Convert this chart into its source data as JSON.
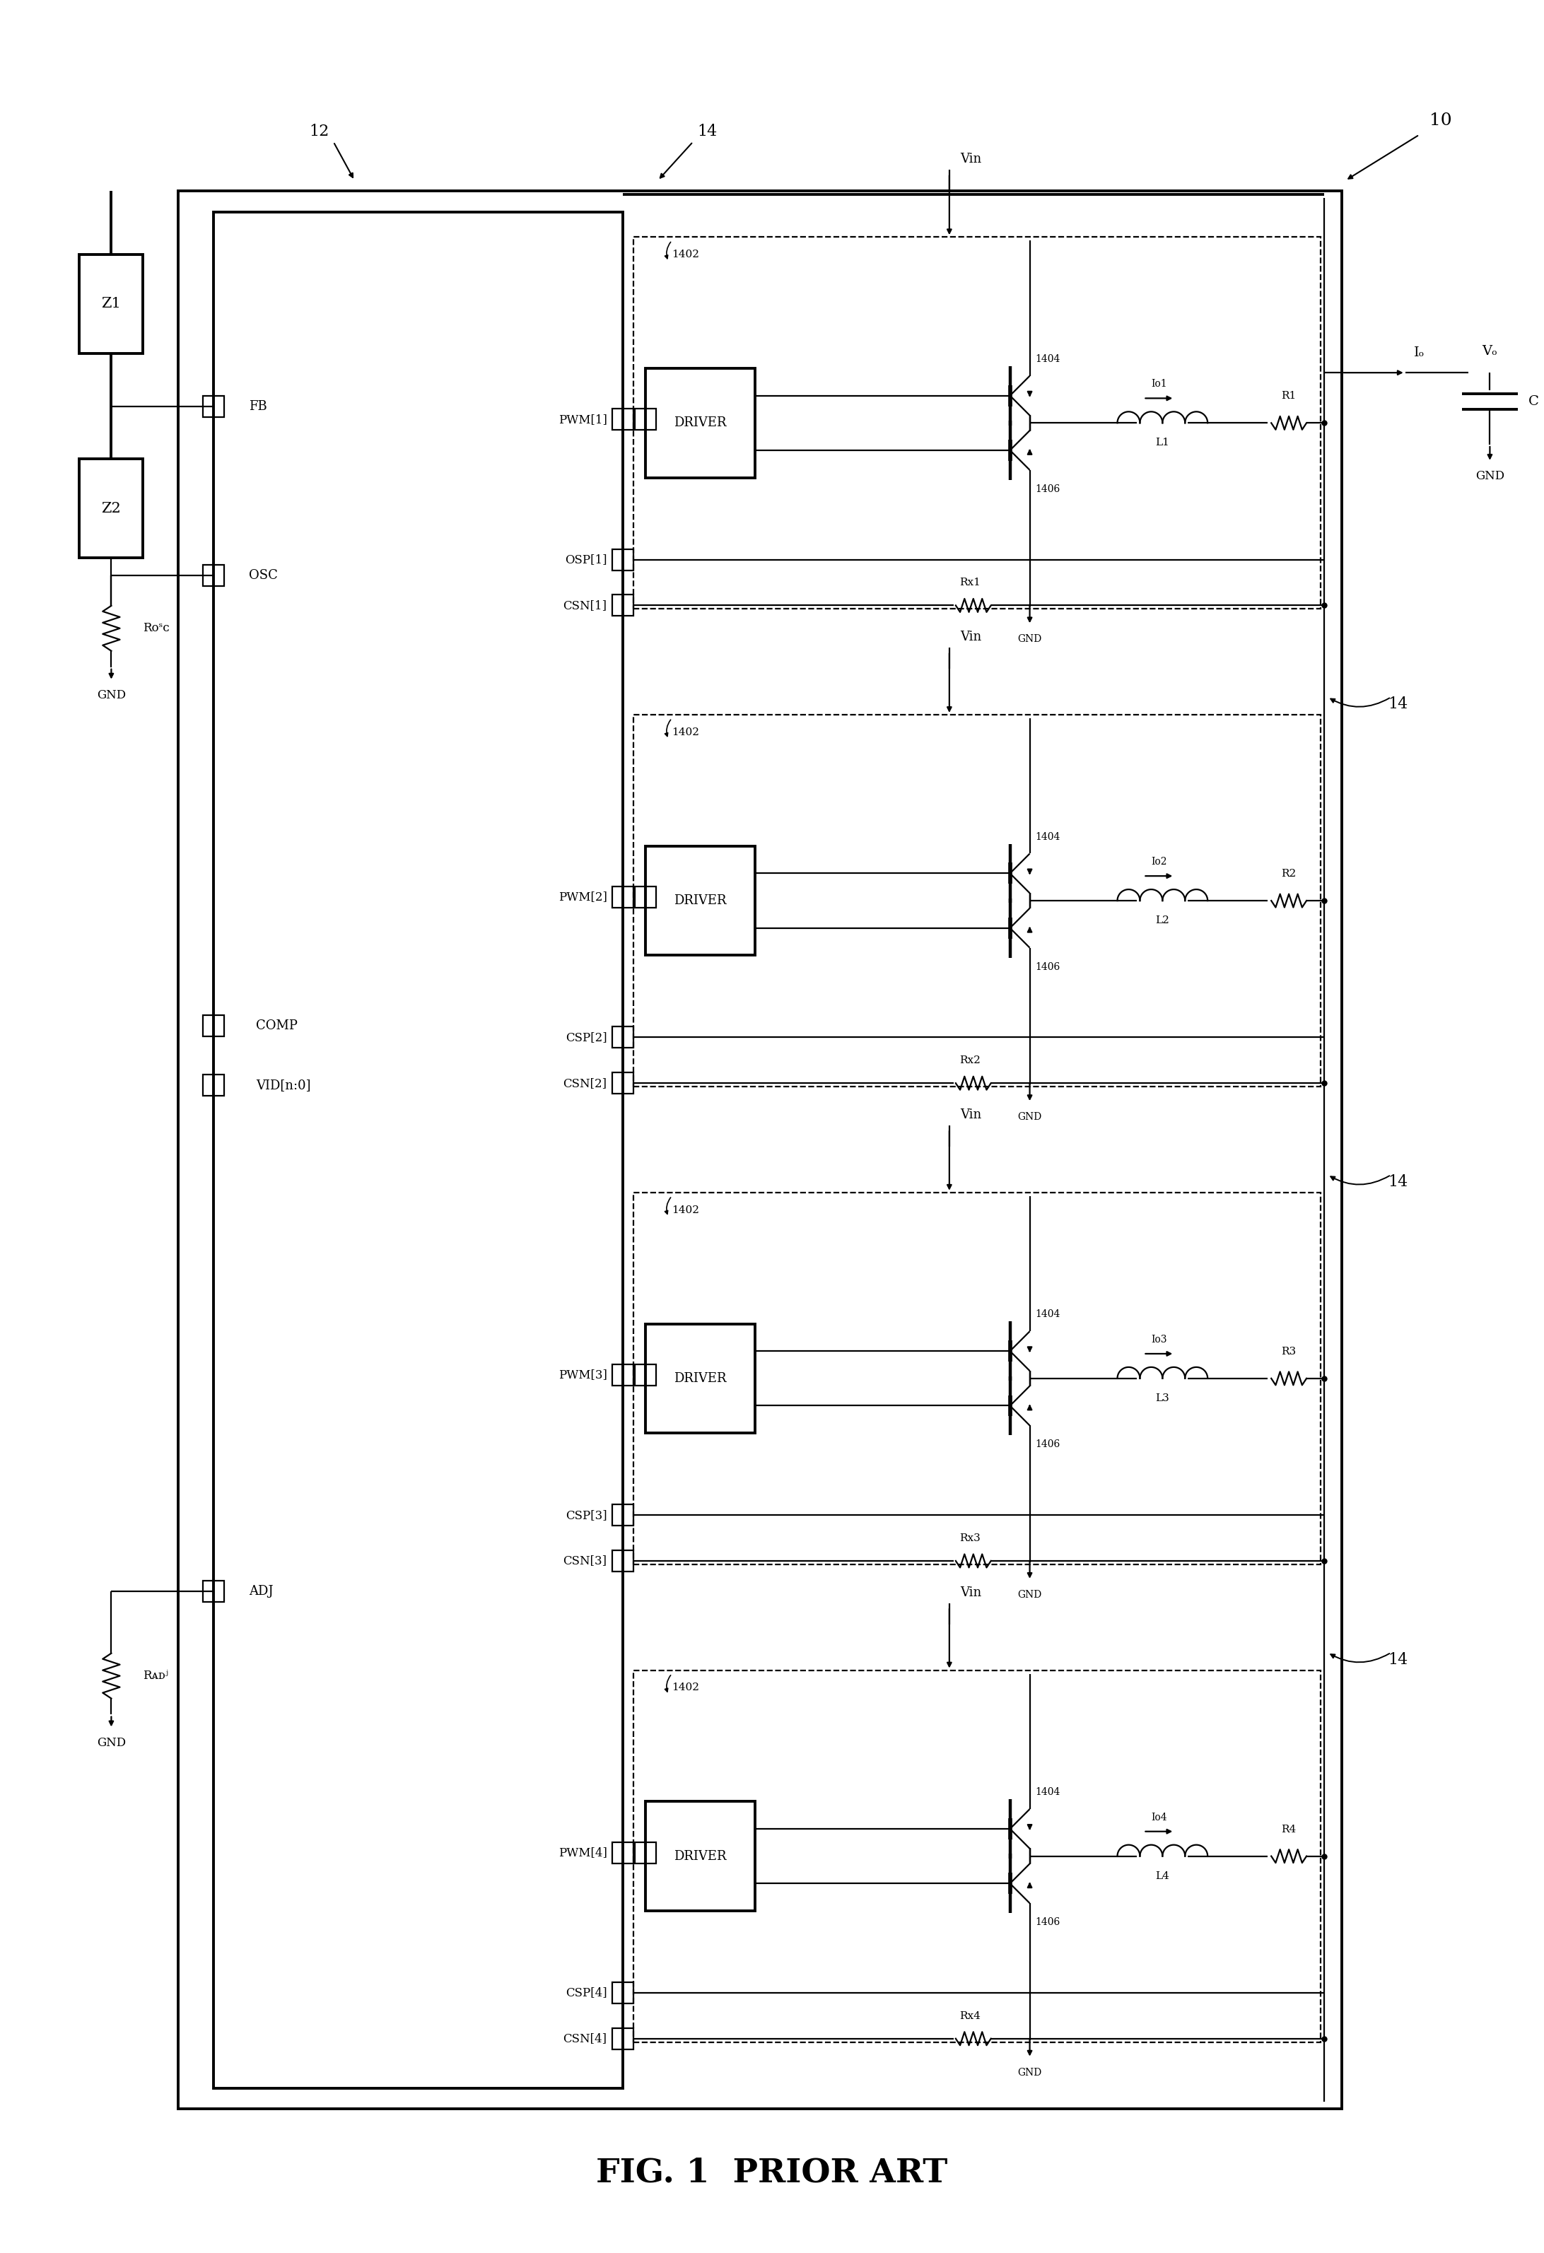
{
  "title": "FIG. 1  PRIOR ART",
  "title_fontsize": 34,
  "bg_color": "#ffffff",
  "phases": [
    {
      "pwm": "PWM[1]",
      "osp": "OSP[1]",
      "csp": "",
      "csn": "CSN[1]",
      "driver": "DRIVER",
      "top_fet": "1404",
      "bot_fet": "1406",
      "box_label": "1402",
      "inductor": "L1",
      "current": "I",
      "cur_sub": "o1",
      "resistor": "R1",
      "rx": "Rx1",
      "phase_num": 1
    },
    {
      "pwm": "PWM[2]",
      "osp": "",
      "csp": "CSP[2]",
      "csn": "CSN[2]",
      "driver": "DRIVER",
      "top_fet": "1404",
      "bot_fet": "1406",
      "box_label": "1402",
      "inductor": "L2",
      "current": "I",
      "cur_sub": "o2",
      "resistor": "R2",
      "rx": "Rx2",
      "phase_num": 2
    },
    {
      "pwm": "PWM[3]",
      "osp": "",
      "csp": "CSP[3]",
      "csn": "CSN[3]",
      "driver": "DRIVER",
      "top_fet": "1404",
      "bot_fet": "1406",
      "box_label": "1402",
      "inductor": "L3",
      "current": "I",
      "cur_sub": "o3",
      "resistor": "R3",
      "rx": "Rx3",
      "phase_num": 3
    },
    {
      "pwm": "PWM[4]",
      "osp": "",
      "csp": "CSP[4]",
      "csn": "CSN[4]",
      "driver": "DRIVER",
      "top_fet": "1404",
      "bot_fet": "1406",
      "box_label": "1402",
      "inductor": "L4",
      "current": "I",
      "cur_sub": "o4",
      "resistor": "R4",
      "rx": "Rx4",
      "phase_num": 4
    }
  ]
}
